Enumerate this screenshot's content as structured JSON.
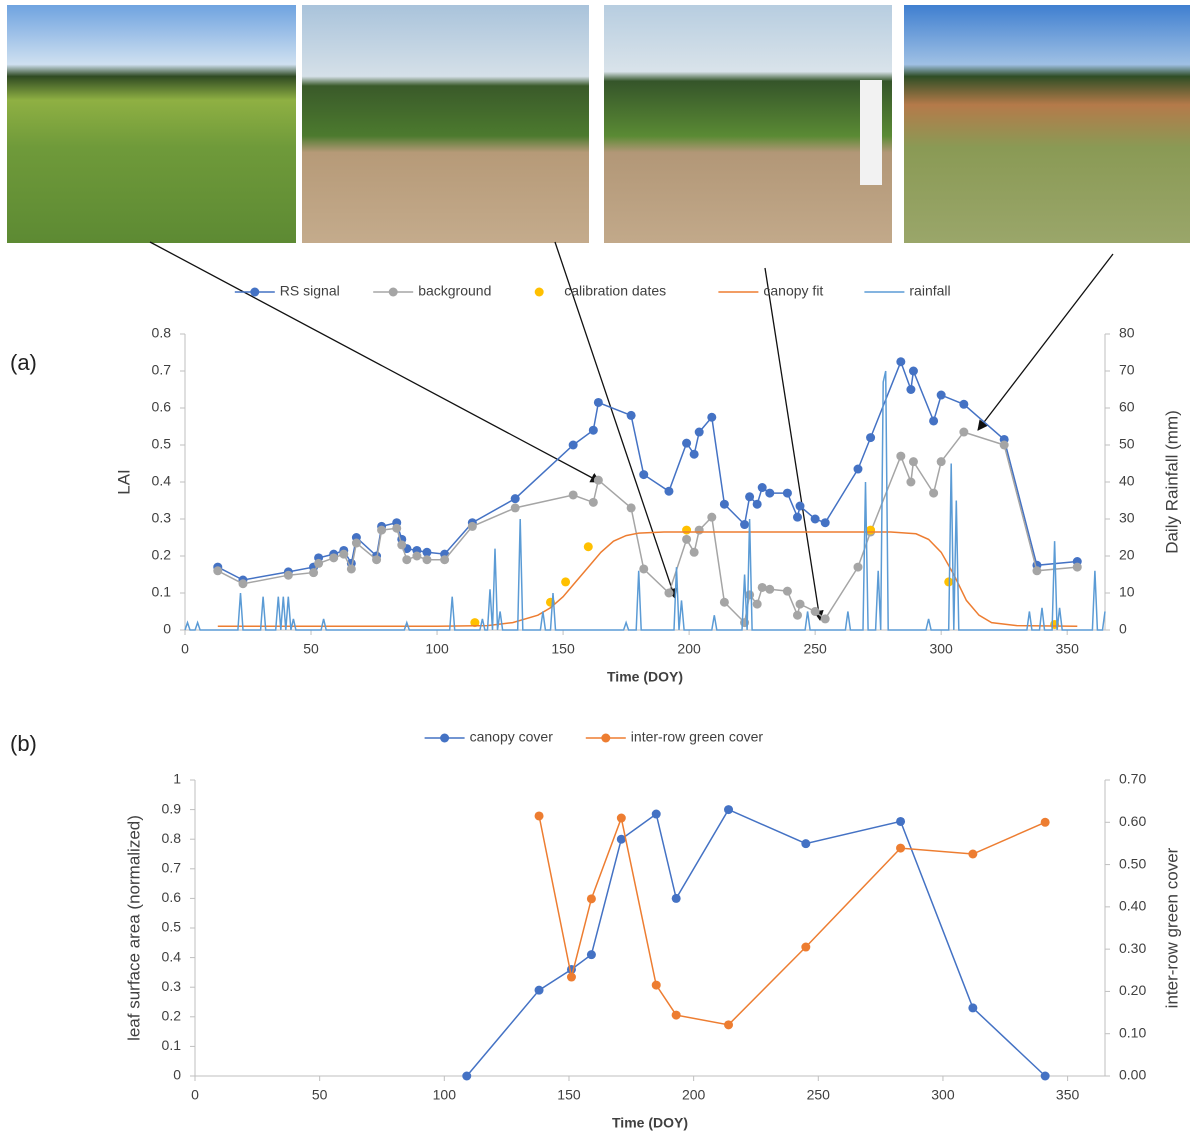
{
  "chart_data": [
    {
      "type": "line",
      "annotation": "(a)",
      "xlabel": "Time (DOY)",
      "ylabel": "LAI",
      "y2label": "Daily Rainfall (mm)",
      "xlim": [
        0,
        365
      ],
      "xticks": [
        0,
        50,
        100,
        150,
        200,
        250,
        300,
        350
      ],
      "ylim": [
        0,
        0.8
      ],
      "yticks": [
        0,
        0.1,
        0.2,
        0.3,
        0.4,
        0.5,
        0.6,
        0.7,
        0.8
      ],
      "y2lim": [
        0,
        80
      ],
      "y2ticks": [
        0,
        10,
        20,
        30,
        40,
        50,
        60,
        70,
        80
      ],
      "series": [
        {
          "name": "RS signal",
          "color": "#4472c4",
          "line": true,
          "marker": true,
          "x": [
            13,
            23,
            41,
            51,
            53,
            59,
            63,
            66,
            68,
            76,
            78,
            84,
            86,
            88,
            92,
            96,
            103,
            114,
            131,
            154,
            162,
            164,
            177,
            182,
            192,
            199,
            202,
            204,
            209,
            214,
            222,
            224,
            227,
            229,
            232,
            239,
            243,
            244,
            250,
            254,
            267,
            272,
            284,
            288,
            289,
            297,
            300,
            309,
            325,
            338,
            354
          ],
          "values": [
            0.17,
            0.135,
            0.157,
            0.17,
            0.195,
            0.205,
            0.215,
            0.18,
            0.25,
            0.2,
            0.28,
            0.29,
            0.245,
            0.22,
            0.215,
            0.21,
            0.205,
            0.29,
            0.355,
            0.5,
            0.54,
            0.615,
            0.58,
            0.42,
            0.375,
            0.505,
            0.475,
            0.535,
            0.575,
            0.34,
            0.285,
            0.36,
            0.34,
            0.385,
            0.37,
            0.37,
            0.305,
            0.335,
            0.3,
            0.29,
            0.435,
            0.52,
            0.725,
            0.65,
            0.7,
            0.565,
            0.635,
            0.61,
            0.515,
            0.175,
            0.185
          ]
        },
        {
          "name": "background",
          "color": "#a5a5a5",
          "line": true,
          "marker": true,
          "x": [
            13,
            23,
            41,
            51,
            53,
            59,
            63,
            66,
            68,
            76,
            78,
            84,
            86,
            88,
            92,
            96,
            103,
            114,
            131,
            154,
            162,
            164,
            177,
            182,
            192,
            199,
            202,
            204,
            209,
            214,
            222,
            224,
            227,
            229,
            232,
            239,
            243,
            244,
            250,
            254,
            267,
            272,
            284,
            288,
            289,
            297,
            300,
            309,
            325,
            338,
            354
          ],
          "values": [
            0.16,
            0.125,
            0.148,
            0.155,
            0.18,
            0.195,
            0.205,
            0.165,
            0.235,
            0.19,
            0.27,
            0.275,
            0.23,
            0.19,
            0.2,
            0.19,
            0.19,
            0.28,
            0.33,
            0.365,
            0.345,
            0.405,
            0.33,
            0.165,
            0.1,
            0.245,
            0.21,
            0.27,
            0.305,
            0.075,
            0.02,
            0.095,
            0.07,
            0.115,
            0.11,
            0.105,
            0.04,
            0.07,
            0.05,
            0.03,
            0.17,
            0.265,
            0.47,
            0.4,
            0.455,
            0.37,
            0.455,
            0.535,
            0.5,
            0.16,
            0.17
          ]
        },
        {
          "name": "calibration dates",
          "color": "#ffc000",
          "line": false,
          "marker": true,
          "x": [
            115,
            145,
            151,
            160,
            199,
            272,
            303,
            345
          ],
          "values": [
            0.02,
            0.075,
            0.13,
            0.225,
            0.27,
            0.27,
            0.13,
            0.015
          ]
        },
        {
          "name": "canopy fit",
          "color": "#ed7d31",
          "line": true,
          "marker": false,
          "x": [
            13,
            100,
            120,
            130,
            140,
            145,
            150,
            155,
            160,
            165,
            170,
            175,
            180,
            190,
            200,
            250,
            280,
            290,
            295,
            300,
            305,
            310,
            315,
            320,
            330,
            354
          ],
          "values": [
            0.01,
            0.01,
            0.012,
            0.02,
            0.04,
            0.06,
            0.09,
            0.13,
            0.17,
            0.21,
            0.24,
            0.255,
            0.262,
            0.265,
            0.265,
            0.265,
            0.265,
            0.26,
            0.245,
            0.21,
            0.15,
            0.08,
            0.04,
            0.02,
            0.012,
            0.01
          ]
        },
        {
          "name": "rainfall",
          "color": "#5b9bd5",
          "line": true,
          "marker": false,
          "axis": "y2",
          "x": [
            0,
            1,
            2,
            4,
            5,
            6,
            21,
            22,
            23,
            30,
            31,
            32,
            36,
            37,
            38,
            39,
            40,
            41,
            42,
            43,
            44,
            54,
            55,
            56,
            87,
            88,
            89,
            105,
            106,
            107,
            117,
            118,
            119,
            120,
            121,
            122,
            123,
            124,
            125,
            126,
            132,
            133,
            134,
            141,
            142,
            143,
            145,
            146,
            147,
            174,
            175,
            176,
            179,
            180,
            181,
            194,
            195,
            196,
            197,
            198,
            209,
            210,
            211,
            221,
            222,
            223,
            224,
            225,
            246,
            247,
            248,
            262,
            263,
            264,
            269,
            270,
            271,
            274,
            275,
            276,
            277,
            278,
            279,
            294,
            295,
            296,
            303,
            304,
            305,
            306,
            307,
            334,
            335,
            336,
            339,
            340,
            341,
            344,
            345,
            346,
            347,
            348,
            360,
            361,
            362,
            364,
            365
          ],
          "values": [
            0,
            2,
            0,
            0,
            2,
            0,
            0,
            10,
            0,
            0,
            9,
            0,
            0,
            9,
            0,
            9,
            0,
            9,
            0,
            3,
            0,
            0,
            3,
            0,
            0,
            2,
            0,
            0,
            9,
            0,
            0,
            3,
            0,
            0,
            11,
            0,
            22,
            0,
            5,
            0,
            0,
            30,
            0,
            0,
            5,
            0,
            0,
            10,
            0,
            0,
            2,
            0,
            0,
            16,
            0,
            0,
            17,
            0,
            8,
            0,
            0,
            4,
            0,
            0,
            15,
            0,
            30,
            0,
            0,
            5,
            0,
            0,
            5,
            0,
            0,
            40,
            0,
            0,
            16,
            0,
            67,
            70,
            0,
            0,
            3,
            0,
            0,
            45,
            0,
            35,
            0,
            0,
            5,
            0,
            0,
            6,
            0,
            0,
            24,
            0,
            6,
            0,
            0,
            16,
            0,
            0,
            5
          ]
        }
      ]
    },
    {
      "type": "line",
      "annotation": "(b)",
      "xlabel": "Time (DOY)",
      "ylabel": "leaf surface area (normalized)",
      "y2label": "inter-row green cover",
      "xlim": [
        0,
        365
      ],
      "xticks": [
        0,
        50,
        100,
        150,
        200,
        250,
        300,
        350
      ],
      "ylim": [
        0,
        1
      ],
      "yticks": [
        0,
        0.1,
        0.2,
        0.3,
        0.4,
        0.5,
        0.6,
        0.7,
        0.8,
        0.9,
        1
      ],
      "y2lim": [
        0,
        0.7
      ],
      "y2ticks": [
        {
          "value": 0,
          "label": "0.00"
        },
        {
          "value": 0.1,
          "label": "0.10"
        },
        {
          "value": 0.2,
          "label": "0.20"
        },
        {
          "value": 0.3,
          "label": "0.30"
        },
        {
          "value": 0.4,
          "label": "0.40"
        },
        {
          "value": 0.5,
          "label": "0.50"
        },
        {
          "value": 0.6,
          "label": "0.60"
        },
        {
          "value": 0.7,
          "label": "0.70"
        }
      ],
      "series": [
        {
          "name": "canopy cover",
          "color": "#4472c4",
          "line": true,
          "marker": true,
          "x": [
            109,
            138,
            151,
            159,
            171,
            185,
            193,
            214,
            245,
            283,
            312,
            341
          ],
          "values": [
            0,
            0.29,
            0.36,
            0.41,
            0.8,
            0.885,
            0.6,
            0.9,
            0.785,
            0.86,
            0.23,
            0
          ]
        },
        {
          "name": "inter-row green cover",
          "color": "#ed7d31",
          "line": true,
          "marker": true,
          "axis": "y2",
          "x": [
            138,
            151,
            159,
            171,
            185,
            193,
            214,
            245,
            283,
            312,
            341
          ],
          "values": [
            0.615,
            0.234,
            0.419,
            0.61,
            0.215,
            0.144,
            0.121,
            0.305,
            0.539,
            0.525,
            0.6
          ]
        }
      ]
    }
  ]
}
